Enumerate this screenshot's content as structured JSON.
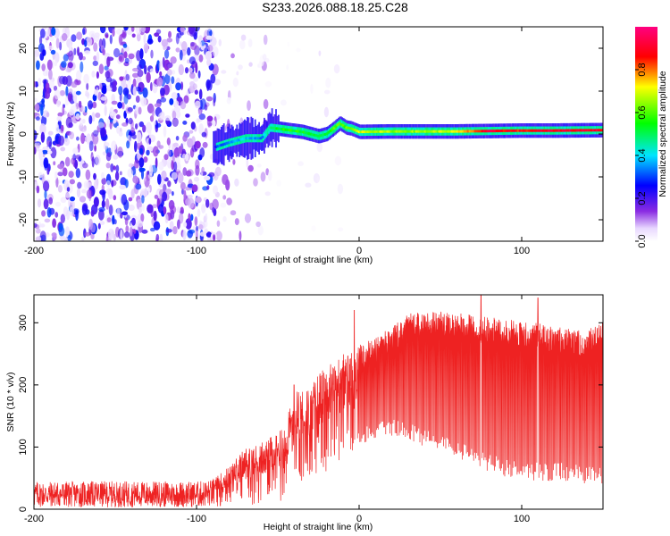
{
  "title": "S233.2026.088.18.25.C28",
  "chart_data": [
    {
      "type": "heatmap",
      "name": "spectrogram",
      "xlabel": "Height of straight line (km)",
      "ylabel": "Frequency (Hz)",
      "xlim": [
        -200,
        150
      ],
      "ylim": [
        -25,
        25
      ],
      "xticks": [
        -200,
        -100,
        0,
        100
      ],
      "yticks": [
        -20,
        -10,
        0,
        10,
        20
      ],
      "colorbar": {
        "label": "Normalized spectral amplitude",
        "range": [
          0,
          1
        ],
        "ticks": [
          "0.0",
          "0.2",
          "0.4",
          "0.6",
          "0.8"
        ],
        "tick_values": [
          0,
          0.2,
          0.4,
          0.6,
          0.8
        ]
      },
      "signal_trace": {
        "x": [
          -88,
          -80,
          -70,
          -60,
          -55,
          -45,
          -35,
          -30,
          -25,
          -20,
          -15,
          -12,
          -10,
          -8,
          -5,
          0,
          20,
          40,
          60,
          80,
          100,
          120,
          150
        ],
        "freq": [
          -3,
          -2,
          -1,
          -1,
          1.5,
          1,
          0.5,
          0,
          -0.5,
          0,
          1.5,
          2.5,
          2,
          1.5,
          1.3,
          0.5,
          0.6,
          0.6,
          0.6,
          0.7,
          0.8,
          0.8,
          0.9
        ],
        "amplitude": [
          0.3,
          0.35,
          0.4,
          0.3,
          0.5,
          0.55,
          0.55,
          0.5,
          0.5,
          0.55,
          0.6,
          0.65,
          0.6,
          0.6,
          0.6,
          0.7,
          0.65,
          0.65,
          0.7,
          0.9,
          0.85,
          0.9,
          0.9
        ]
      },
      "noise_region_x": [
        -200,
        -55
      ]
    },
    {
      "type": "line",
      "name": "snr",
      "xlabel": "Height of straight line (km)",
      "ylabel": "SNR (10 * v/v)",
      "xlim": [
        -200,
        150
      ],
      "ylim": [
        0,
        345
      ],
      "xticks": [
        -200,
        -100,
        0,
        100
      ],
      "yticks": [
        0,
        100,
        200,
        300
      ],
      "color": "#ee2222",
      "envelope": {
        "x": [
          -200,
          -150,
          -100,
          -90,
          -80,
          -70,
          -60,
          -50,
          -45,
          -40,
          -35,
          -30,
          -25,
          -20,
          -15,
          -10,
          -5,
          0,
          10,
          20,
          30,
          40,
          50,
          60,
          70,
          80,
          90,
          100,
          110,
          120,
          130,
          140,
          150
        ],
        "upper": [
          45,
          45,
          45,
          48,
          70,
          100,
          110,
          120,
          150,
          190,
          200,
          195,
          220,
          230,
          240,
          250,
          260,
          265,
          275,
          295,
          315,
          320,
          320,
          315,
          315,
          310,
          305,
          305,
          300,
          295,
          290,
          290,
          300
        ],
        "lower": [
          3,
          3,
          3,
          4,
          5,
          6,
          8,
          10,
          20,
          30,
          40,
          50,
          55,
          60,
          70,
          80,
          90,
          100,
          110,
          115,
          110,
          100,
          90,
          80,
          70,
          60,
          50,
          50,
          45,
          45,
          45,
          40,
          40
        ],
        "spikes": [
          {
            "x": -3,
            "y": 320
          },
          {
            "x": -40,
            "y": 200
          },
          {
            "x": 75,
            "y": 345
          },
          {
            "x": 110,
            "y": 340
          }
        ]
      }
    }
  ]
}
